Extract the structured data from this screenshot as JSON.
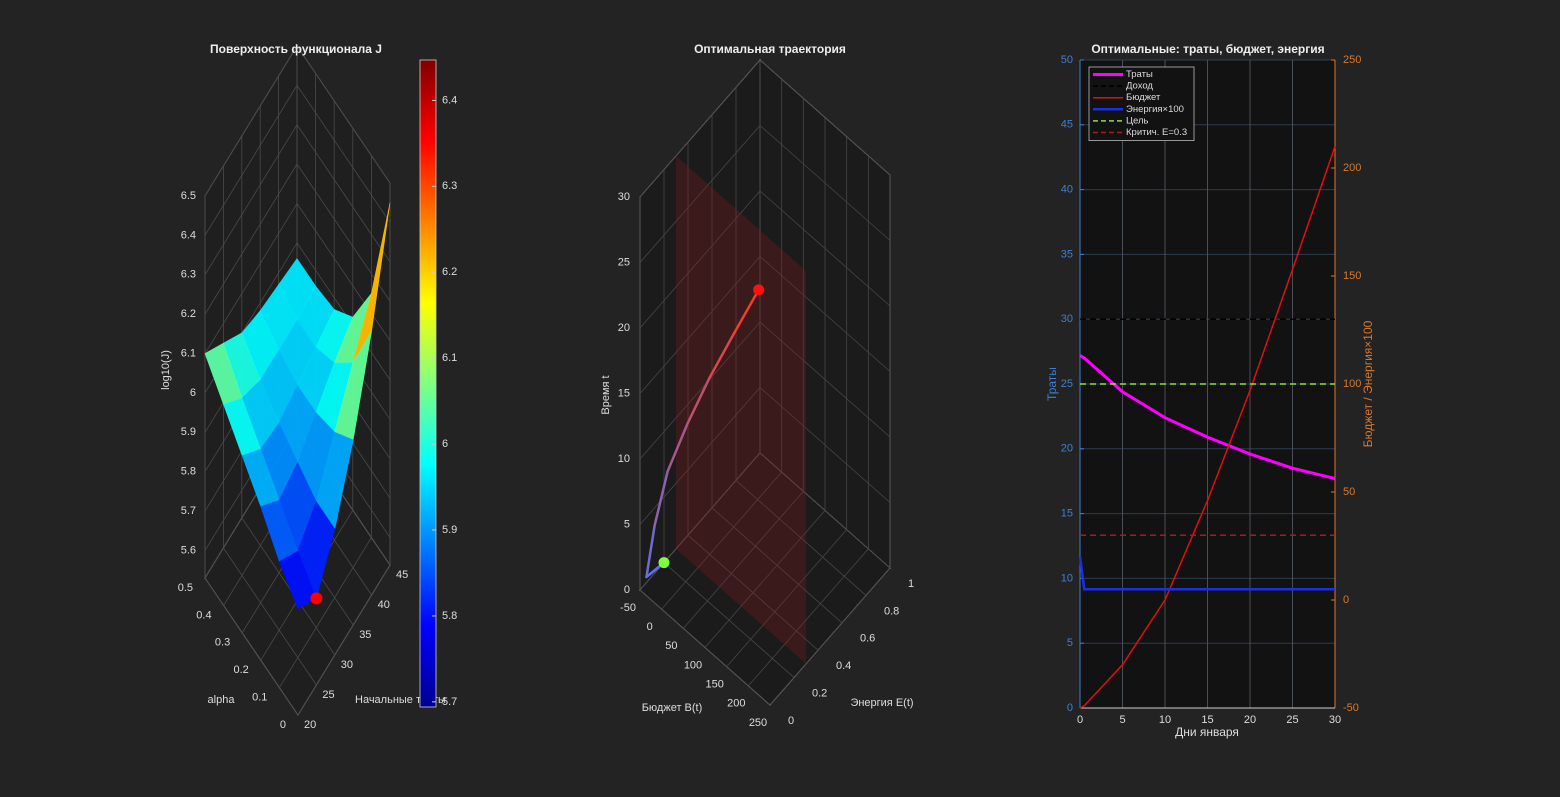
{
  "chart_data": [
    {
      "type": "surface",
      "title": "Поверхность функционала J",
      "x_label": "alpha",
      "y_label": "Начальные траты",
      "z_label": "log10(J)",
      "x": [
        0,
        0.1,
        0.2,
        0.3,
        0.4,
        0.5
      ],
      "y": [
        20,
        25,
        30,
        35,
        40,
        45
      ],
      "z": [
        [
          5.8,
          5.75,
          5.85,
          6.0,
          6.2,
          6.45
        ],
        [
          5.85,
          5.8,
          5.85,
          5.95,
          6.05,
          6.15
        ],
        [
          5.92,
          5.86,
          5.88,
          5.93,
          5.98,
          6.02
        ],
        [
          5.98,
          5.92,
          5.91,
          5.93,
          5.95,
          5.97
        ],
        [
          6.04,
          5.98,
          5.95,
          5.95,
          5.95,
          5.96
        ],
        [
          6.1,
          6.05,
          6.0,
          5.98,
          5.97,
          5.96
        ]
      ],
      "xlim": [
        0,
        0.5
      ],
      "xticks": [
        0,
        0.1,
        0.2,
        0.3,
        0.4,
        0.5
      ],
      "ylim": [
        20,
        45
      ],
      "yticks": [
        20,
        25,
        30,
        35,
        40,
        45
      ],
      "zlim": [
        5.53,
        6.5
      ],
      "zticks": [
        5.6,
        5.7,
        5.8,
        5.9,
        6,
        6.1,
        6.2,
        6.3,
        6.4,
        6.5
      ],
      "colormap": "jet",
      "clim": [
        5.694,
        6.447
      ],
      "cticks": [
        5.7,
        5.8,
        5.9,
        6,
        6.1,
        6.2,
        6.3,
        6.4
      ],
      "marker": {
        "x": 0,
        "y": 25,
        "z": 5.75,
        "color": "#ff0000"
      },
      "grid": true
    },
    {
      "type": "trajectory3d",
      "title": "Оптимальная траектория",
      "x_label": "Бюджет B(t)",
      "y_label": "Энергия E(t)",
      "z_label": "Время t",
      "x": [
        -50,
        -49,
        -30,
        0,
        46,
        97,
        153,
        210
      ],
      "y": [
        0.2,
        0.05,
        0.05,
        0.05,
        0.05,
        0.05,
        0.05,
        0.05
      ],
      "z": [
        0,
        0.5,
        5,
        10,
        15,
        20,
        25,
        30
      ],
      "xlim": [
        -50,
        250
      ],
      "xticks": [
        -50,
        0,
        50,
        100,
        150,
        200,
        250
      ],
      "ylim": [
        0,
        1
      ],
      "yticks": [
        0,
        0.2,
        0.4,
        0.6,
        0.8,
        1
      ],
      "zlim": [
        0,
        30
      ],
      "zticks": [
        0,
        5,
        10,
        15,
        20,
        25,
        30
      ],
      "line_colors": [
        "#4a78ff",
        "#ff3a1a"
      ],
      "start_color": "#7fff3f",
      "end_color": "#ff1010",
      "critical_E": 0.3,
      "grid": true
    },
    {
      "type": "line",
      "title": "Оптимальные: траты, бюджет, энергия",
      "x_label": "Дни января",
      "y_label": "Траты",
      "y2_label": "Бюджет / Энергия×100",
      "x": [
        0,
        0.5,
        5,
        10,
        15,
        20,
        25,
        30
      ],
      "xlim": [
        0,
        30
      ],
      "xticks": [
        0,
        5,
        10,
        15,
        20,
        25,
        30
      ],
      "ylim": [
        0,
        50
      ],
      "yticks": [
        0,
        5,
        10,
        15,
        20,
        25,
        30,
        35,
        40,
        45,
        50
      ],
      "y2lim": [
        -50,
        250
      ],
      "y2ticks": [
        -50,
        0,
        50,
        100,
        150,
        200,
        250
      ],
      "y_color": "#3f7fd6",
      "y2_color": "#d9782c",
      "grid": true,
      "legend": "upper left",
      "series": [
        {
          "name": "Траты",
          "color": "#ff00ff",
          "width": 3,
          "values": [
            27.2,
            27.0,
            24.4,
            22.4,
            20.9,
            19.6,
            18.5,
            17.7
          ]
        },
        {
          "name": "Доход",
          "color": "#000000",
          "dash": true,
          "values": [
            30,
            30,
            30,
            30,
            30,
            30,
            30,
            30
          ]
        },
        {
          "name": "Бюджет",
          "color": "#e01010",
          "axis": "y2",
          "values": [
            -50,
            -49,
            -30,
            0,
            46,
            97,
            153,
            210
          ]
        },
        {
          "name": "Энергия×100",
          "color": "#1a2fe6",
          "width": 2.5,
          "axis": "y2",
          "values": [
            20,
            5,
            5,
            5,
            5,
            5,
            5,
            5
          ]
        },
        {
          "name": "Цель",
          "color": "#8fe03a",
          "dash": true,
          "axis": "y2",
          "values": [
            100,
            100,
            100,
            100,
            100,
            100,
            100,
            100
          ]
        },
        {
          "name": "Критич. E=0.3",
          "color": "#b01818",
          "dash": true,
          "axis": "y2",
          "values": [
            30,
            30,
            30,
            30,
            30,
            30,
            30,
            30
          ]
        }
      ]
    }
  ]
}
